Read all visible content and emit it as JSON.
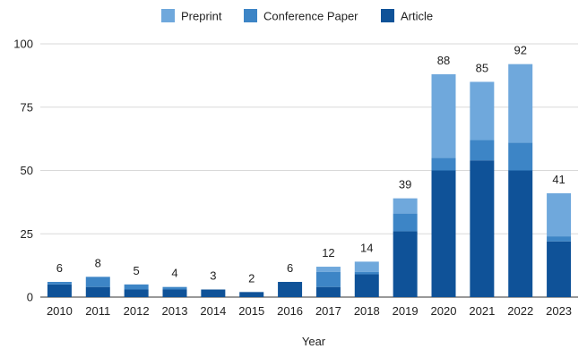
{
  "chart_data": {
    "type": "bar",
    "stacked": true,
    "title": "",
    "xlabel": "Year",
    "ylabel": "",
    "ylim": [
      0,
      100
    ],
    "yticks": [
      0,
      25,
      50,
      75,
      100
    ],
    "grid": "horizontal",
    "legend_position": "top",
    "categories": [
      "2010",
      "2011",
      "2012",
      "2013",
      "2014",
      "2015",
      "2016",
      "2017",
      "2018",
      "2019",
      "2020",
      "2021",
      "2022",
      "2023"
    ],
    "series": [
      {
        "name": "Article",
        "color": "#0f5298",
        "values": [
          5,
          4,
          3,
          3,
          3,
          2,
          6,
          4,
          9,
          26,
          50,
          54,
          50,
          22
        ]
      },
      {
        "name": "Conference Paper",
        "color": "#3d85c6",
        "values": [
          1,
          4,
          2,
          1,
          0,
          0,
          0,
          6,
          1,
          7,
          5,
          8,
          11,
          2
        ]
      },
      {
        "name": "Preprint",
        "color": "#6fa8dc",
        "values": [
          0,
          0,
          0,
          0,
          0,
          0,
          0,
          2,
          4,
          6,
          33,
          23,
          31,
          17
        ]
      }
    ],
    "legend_order": [
      "Preprint",
      "Conference Paper",
      "Article"
    ],
    "totals": [
      6,
      8,
      5,
      4,
      3,
      2,
      6,
      12,
      14,
      39,
      88,
      85,
      92,
      41
    ]
  }
}
